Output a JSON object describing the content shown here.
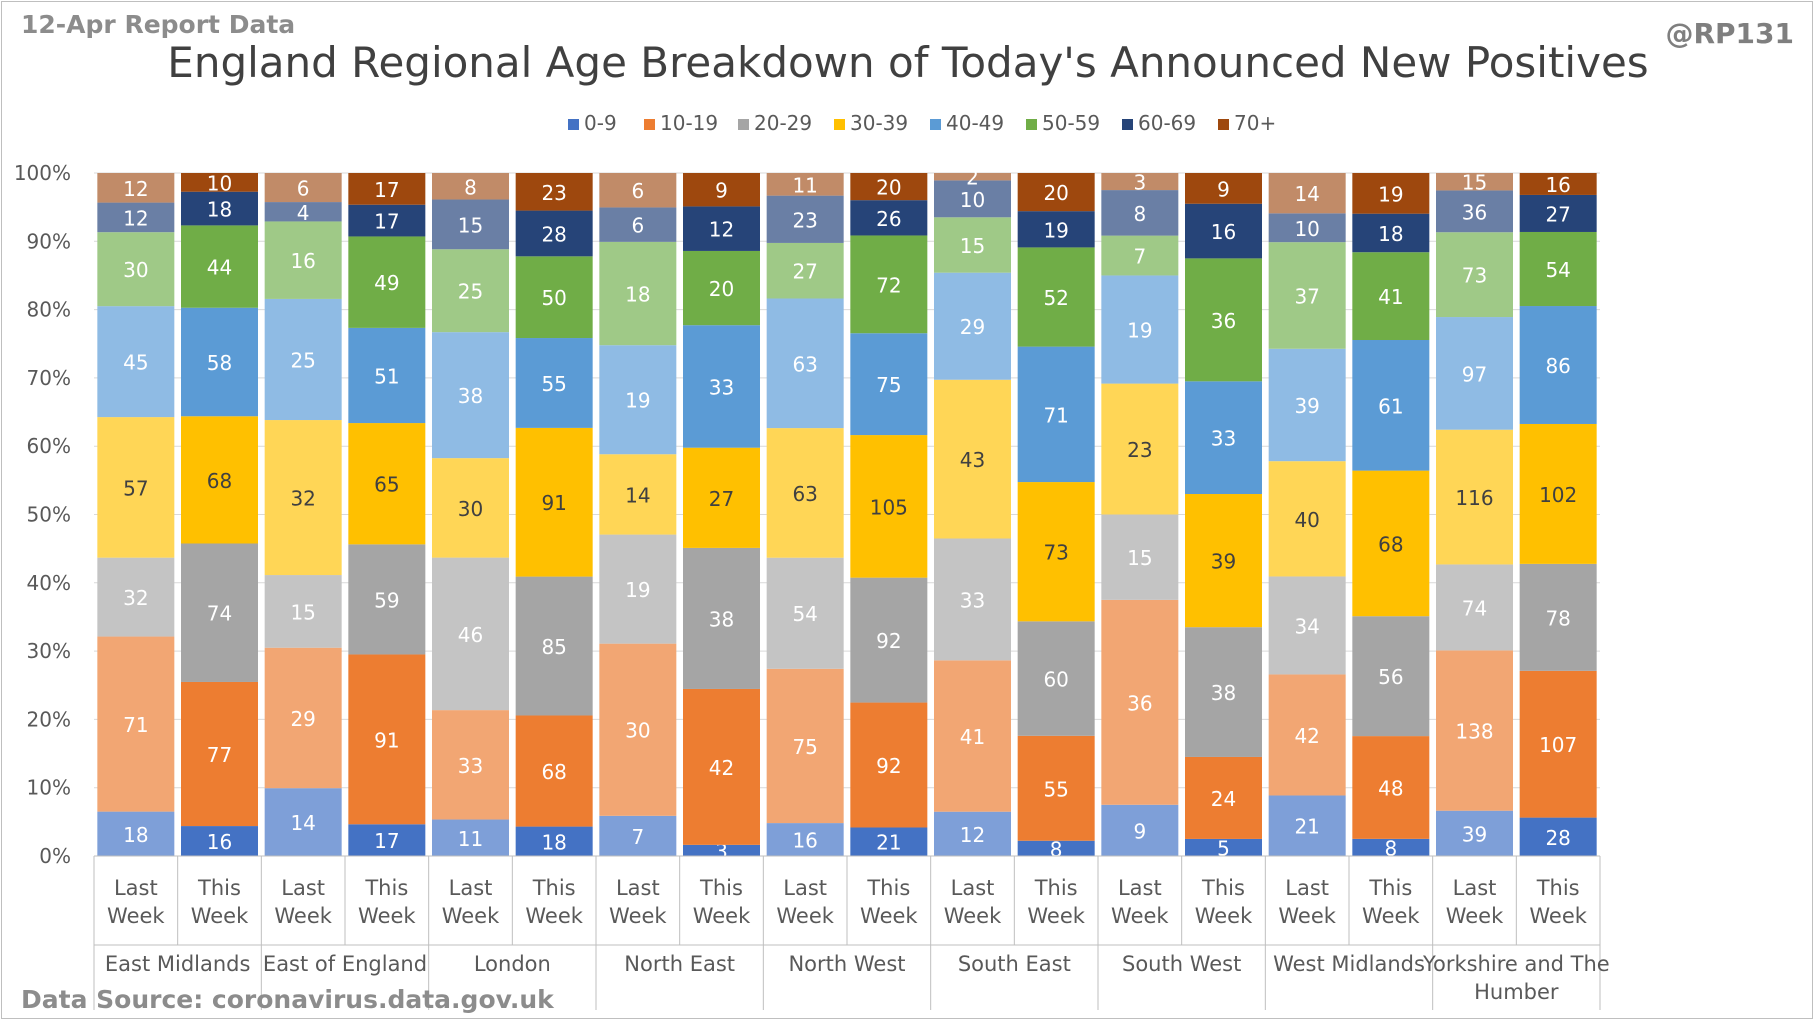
{
  "header": {
    "report_label": "12-Apr Report Data",
    "handle": "@RP131",
    "source_label": "Data Source: coronavirus.data.gov.uk"
  },
  "chart_data": {
    "type": "bar",
    "stacked": "percent",
    "title": "England Regional Age Breakdown of Today's Announced New Positives",
    "xlabel": "",
    "ylabel": "",
    "ylim": [
      0,
      100
    ],
    "yticks": [
      "0%",
      "10%",
      "20%",
      "30%",
      "40%",
      "50%",
      "60%",
      "70%",
      "80%",
      "90%",
      "100%"
    ],
    "legend_position": "top",
    "grid": true,
    "groups": [
      "East Midlands",
      "East of England",
      "London",
      "North East",
      "North West",
      "South East",
      "South West",
      "West Midlands",
      "Yorkshire and The Humber"
    ],
    "subcategories": [
      "Last Week",
      "This Week"
    ],
    "categories": [
      "East Midlands - Last Week",
      "East Midlands - This Week",
      "East of England - Last Week",
      "East of England - This Week",
      "London - Last Week",
      "London - This Week",
      "North East - Last Week",
      "North East - This Week",
      "North West - Last Week",
      "North West - This Week",
      "South East - Last Week",
      "South East - This Week",
      "South West - Last Week",
      "South West - This Week",
      "West Midlands - Last Week",
      "West Midlands - This Week",
      "Yorkshire and The Humber - Last Week",
      "Yorkshire and The Humber - This Week"
    ],
    "series": [
      {
        "name": "0-9",
        "color": "#4472c4",
        "light": "#7e9fd8",
        "values": [
          18,
          16,
          14,
          17,
          11,
          18,
          7,
          3,
          16,
          21,
          12,
          8,
          9,
          5,
          21,
          8,
          39,
          28
        ]
      },
      {
        "name": "10-19",
        "color": "#ed7d31",
        "light": "#f2a673",
        "values": [
          71,
          77,
          29,
          91,
          33,
          68,
          30,
          42,
          75,
          92,
          41,
          55,
          36,
          24,
          42,
          48,
          138,
          107
        ]
      },
      {
        "name": "20-29",
        "color": "#a5a5a5",
        "light": "#c4c4c4",
        "values": [
          32,
          74,
          15,
          59,
          46,
          85,
          19,
          38,
          54,
          92,
          33,
          60,
          15,
          38,
          34,
          56,
          74,
          78
        ]
      },
      {
        "name": "30-39",
        "color": "#ffc000",
        "light": "#ffd656",
        "values": [
          57,
          68,
          32,
          65,
          30,
          91,
          14,
          27,
          63,
          105,
          43,
          73,
          23,
          39,
          40,
          68,
          116,
          102
        ]
      },
      {
        "name": "40-49",
        "color": "#5b9bd5",
        "light": "#8fbbe4",
        "values": [
          45,
          58,
          25,
          51,
          38,
          55,
          19,
          33,
          63,
          75,
          29,
          71,
          19,
          33,
          39,
          61,
          97,
          86
        ]
      },
      {
        "name": "50-59",
        "color": "#70ad47",
        "light": "#9fc987",
        "values": [
          30,
          44,
          16,
          49,
          25,
          50,
          18,
          20,
          27,
          72,
          15,
          52,
          7,
          36,
          37,
          41,
          73,
          54
        ]
      },
      {
        "name": "60-69",
        "color": "#264478",
        "light": "#6a7fa5",
        "values": [
          12,
          18,
          4,
          17,
          15,
          28,
          6,
          12,
          23,
          26,
          10,
          19,
          8,
          16,
          10,
          18,
          36,
          27
        ]
      },
      {
        "name": "70+",
        "color": "#9e480e",
        "light": "#c18b68",
        "values": [
          12,
          10,
          6,
          17,
          8,
          23,
          6,
          9,
          11,
          20,
          2,
          20,
          3,
          9,
          14,
          19,
          15,
          16
        ]
      }
    ]
  }
}
